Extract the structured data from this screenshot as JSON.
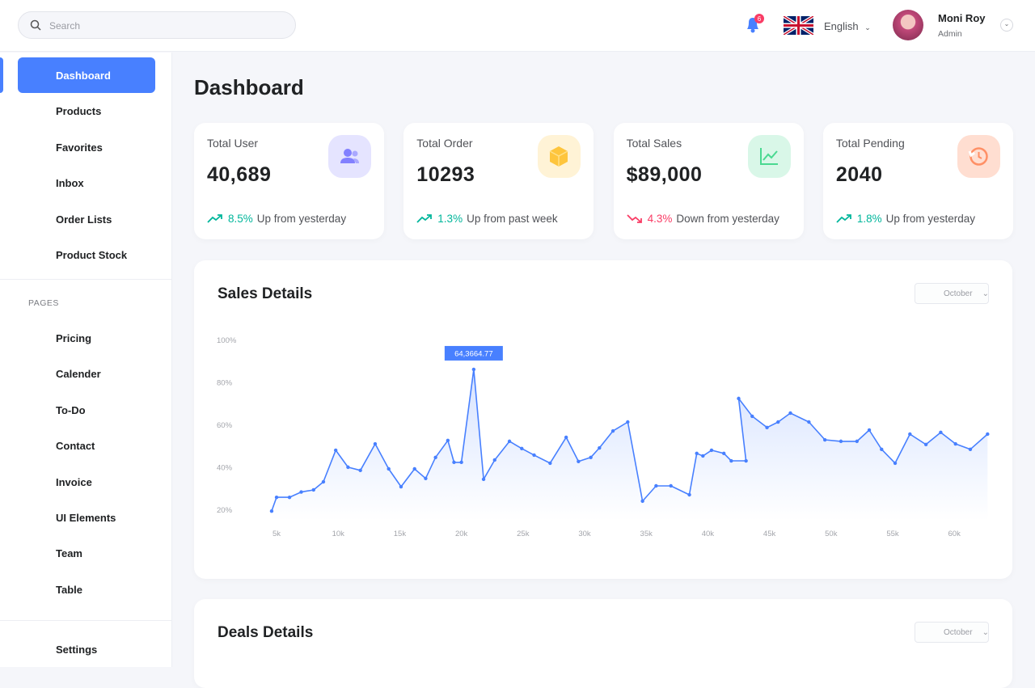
{
  "header": {
    "search_placeholder": "Search",
    "notification_count": "6",
    "language": "English",
    "user": {
      "name": "Moni Roy",
      "role": "Admin"
    }
  },
  "sidebar": {
    "main": [
      "Dashboard",
      "Products",
      "Favorites",
      "Inbox",
      "Order Lists",
      "Product Stock"
    ],
    "section_title": "PAGES",
    "pages": [
      "Pricing",
      "Calender",
      "To-Do",
      "Contact",
      "Invoice",
      "UI Elements",
      "Team",
      "Table"
    ],
    "bottom": [
      "Settings"
    ]
  },
  "page_title": "Dashboard",
  "stats": [
    {
      "label": "Total User",
      "value": "40,689",
      "change": "8.5%",
      "change_text": "Up from yesterday",
      "trend": "up"
    },
    {
      "label": "Total Order",
      "value": "10293",
      "change": "1.3%",
      "change_text": "Up from past week",
      "trend": "up"
    },
    {
      "label": "Total Sales",
      "value": "$89,000",
      "change": "4.3%",
      "change_text": "Down from yesterday",
      "trend": "down"
    },
    {
      "label": "Total Pending",
      "value": "2040",
      "change": "1.8%",
      "change_text": "Up from yesterday",
      "trend": "up"
    }
  ],
  "sales_chart": {
    "type": "line",
    "title": "Sales Details",
    "filter": "October",
    "color": "#4880ff",
    "x": [
      4600,
      5000,
      6050,
      7000,
      8000,
      8800,
      9800,
      10800,
      11800,
      13000,
      14100,
      15100,
      16200,
      17100,
      17900,
      18900,
      19400,
      20000,
      21000,
      21800,
      22700,
      23900,
      24900,
      25900,
      27200,
      28500,
      29500,
      30500,
      31200,
      32300,
      33500,
      34700,
      35800,
      37000,
      38500,
      39100,
      39600,
      40300,
      41300,
      41900,
      43100,
      42500,
      43600,
      44800,
      45700,
      46700,
      48200,
      49500,
      50800,
      52100,
      53100,
      54100,
      55200,
      56400,
      57700,
      58900,
      60100,
      61300,
      62700
    ],
    "values": [
      19.5,
      26,
      26,
      28.5,
      29.5,
      33.3,
      48.2,
      40.2,
      38.7,
      51.2,
      39.4,
      31,
      39.4,
      34.9,
      44.8,
      52.8,
      42.5,
      42.5,
      86.3,
      34.5,
      43.6,
      52.4,
      49,
      45.9,
      42.1,
      54.3,
      42.9,
      44.8,
      49.3,
      57.3,
      61.5,
      24.2,
      31.4,
      31.4,
      27.2,
      46.7,
      45.5,
      48.2,
      46.7,
      43.2,
      43.2,
      72.6,
      64.2,
      58.9,
      61.5,
      65.7,
      61.5,
      53.1,
      52.4,
      52.4,
      57.7,
      48.6,
      42.1,
      55.8,
      50.9,
      56.6,
      51.2,
      48.6,
      55.8
    ],
    "xlim": [
      4000,
      63000
    ],
    "ylim": [
      15,
      100
    ],
    "xticks": [
      {
        "value": 5000,
        "label": "5k"
      },
      {
        "value": 10000,
        "label": "10k"
      },
      {
        "value": 15000,
        "label": "15k"
      },
      {
        "value": 20000,
        "label": "20k"
      },
      {
        "value": 25000,
        "label": "25k"
      },
      {
        "value": 30000,
        "label": "30k"
      },
      {
        "value": 35000,
        "label": "35k"
      },
      {
        "value": 40000,
        "label": "40k"
      },
      {
        "value": 45000,
        "label": "45k"
      },
      {
        "value": 50000,
        "label": "50k"
      },
      {
        "value": 55000,
        "label": "55k"
      },
      {
        "value": 60000,
        "label": "60k"
      }
    ],
    "yticks": [
      {
        "value": 20,
        "label": "20%"
      },
      {
        "value": 40,
        "label": "40%"
      },
      {
        "value": 60,
        "label": "60%"
      },
      {
        "value": 80,
        "label": "80%"
      },
      {
        "value": 100,
        "label": "100%"
      }
    ],
    "annotation": "64,3664.77"
  },
  "deals": {
    "title": "Deals Details",
    "filter": "October"
  }
}
